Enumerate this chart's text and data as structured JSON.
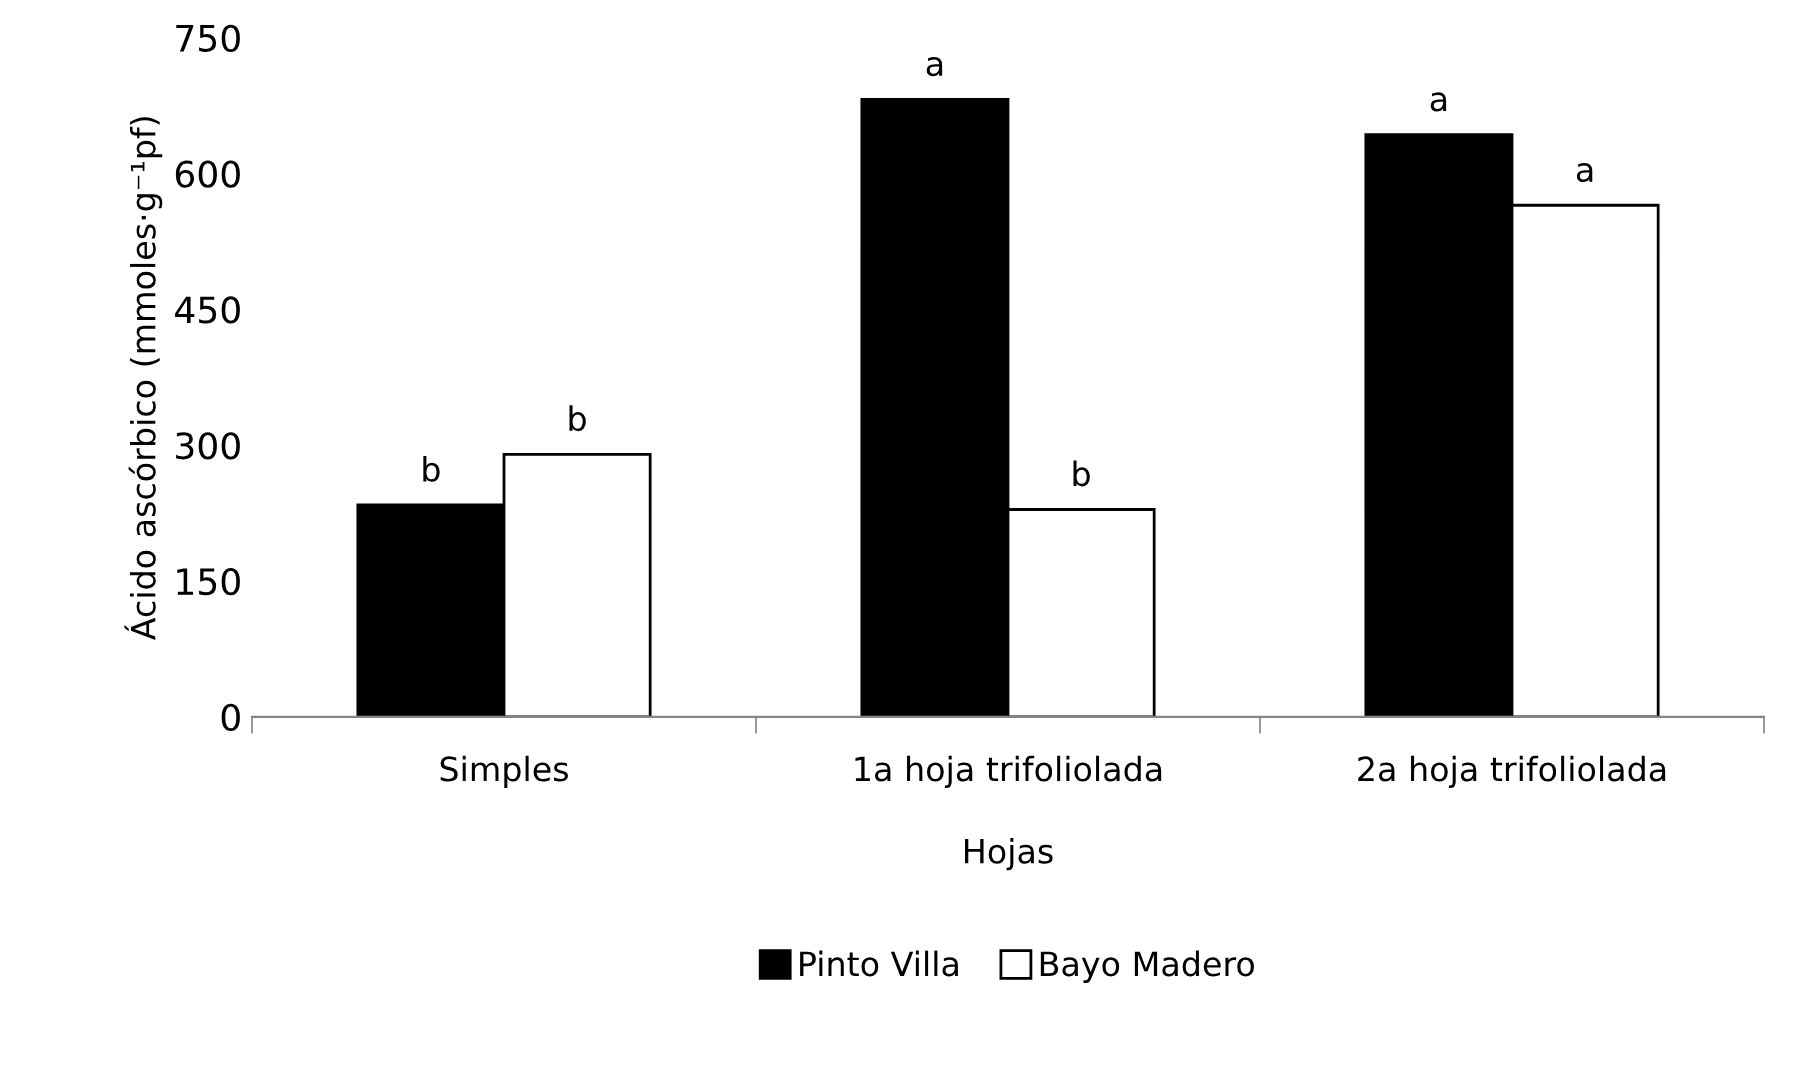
{
  "chart_data": {
    "type": "bar",
    "xlabel": "Hojas",
    "ylabel": "Ácido ascórbico (mmoles·g⁻¹pf)",
    "categories": [
      "Simples",
      "1a hoja trifoliolada",
      "2a hoja trifoliolada"
    ],
    "series": [
      {
        "name": "Pinto Villa",
        "color": "#000000",
        "values": [
          234,
          682,
          643
        ]
      },
      {
        "name": "Bayo Madero",
        "color": "#ffffff",
        "values": [
          290,
          229,
          565
        ]
      }
    ],
    "ylim": [
      0,
      750
    ],
    "yticks": [
      0,
      150,
      300,
      450,
      600,
      750
    ],
    "grid": false,
    "legend": "bottom",
    "annotations": [
      {
        "text": "b",
        "x": "Simples",
        "y": 234
      },
      {
        "text": "b",
        "x": "Simples",
        "y": 290
      },
      {
        "text": "a",
        "x": "1a hoja trifoliolada",
        "y": 682
      },
      {
        "text": "b",
        "x": "1a hoja trifoliolada",
        "y": 229
      },
      {
        "text": "a",
        "x": "2a hoja trifoliolada",
        "y": 643
      },
      {
        "text": "a",
        "x": "2a hoja trifoliolada",
        "y": 565
      }
    ]
  }
}
